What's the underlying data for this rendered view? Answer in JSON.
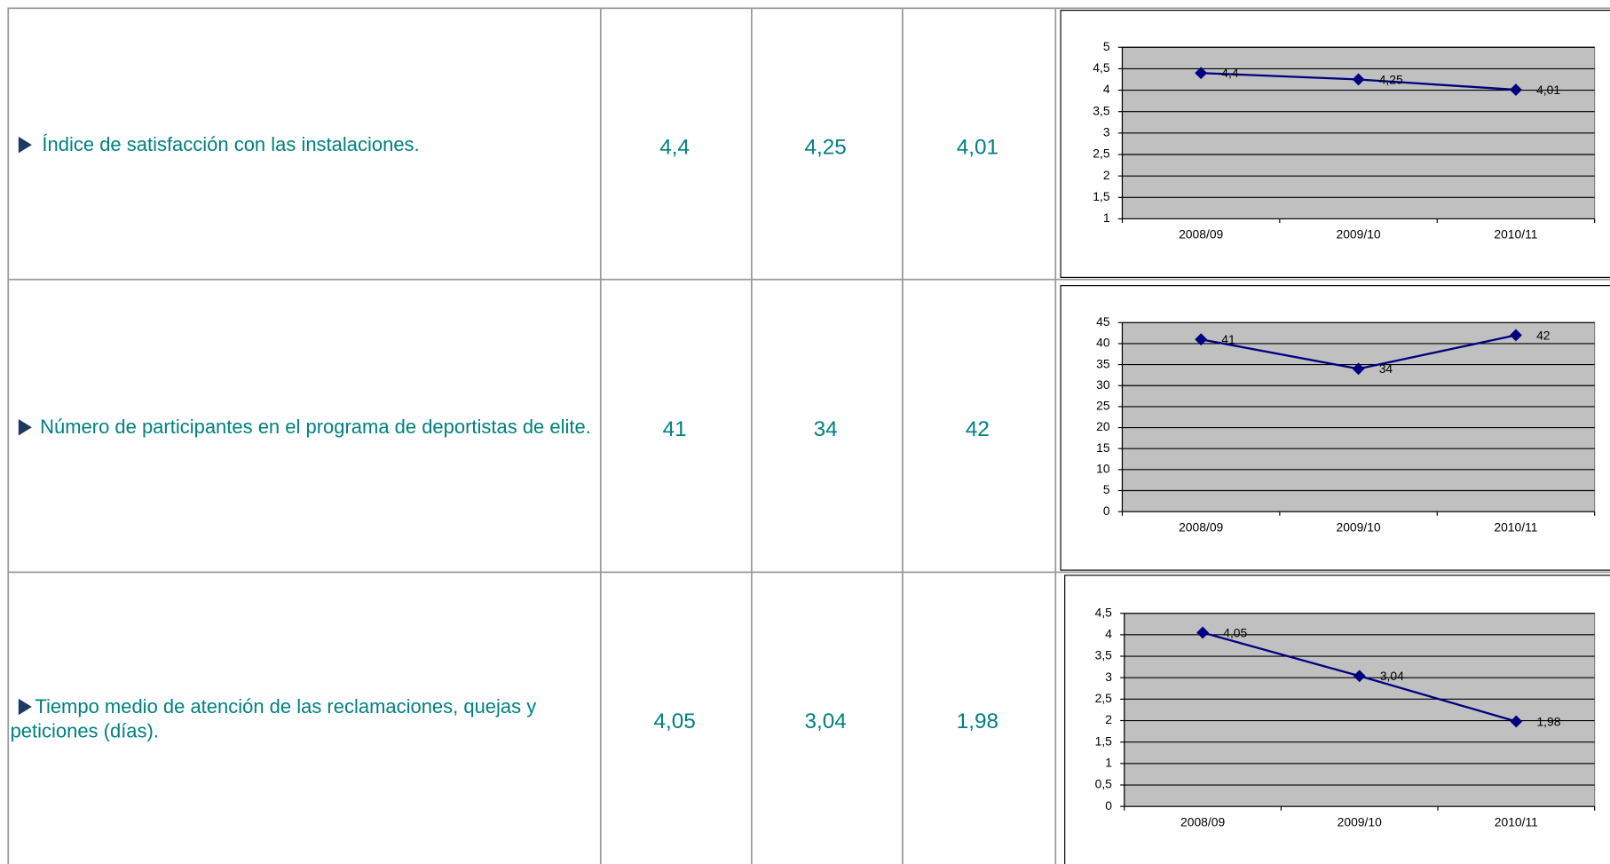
{
  "table": {
    "rows": [
      {
        "label": "Índice de satisfacción con las instalaciones.",
        "values": [
          "4,4",
          "4,25",
          "4,01"
        ]
      },
      {
        "label": "Número de participantes en el programa de deportistas de elite.",
        "values": [
          "41",
          "34",
          "42"
        ]
      },
      {
        "label": "Tiempo medio de atención de las reclamaciones, quejas y peticiones (días).",
        "values": [
          "4,05",
          "3,04",
          "1,98"
        ]
      }
    ]
  },
  "chart_data": [
    {
      "type": "line",
      "categories": [
        "2008/09",
        "2009/10",
        "2010/11"
      ],
      "values": [
        4.4,
        4.25,
        4.01
      ],
      "value_labels": [
        "4,4",
        "4,25",
        "4,01"
      ],
      "color": "#000080",
      "ylim": [
        1,
        5
      ],
      "yticks": [
        1,
        {
          "value": 1.5,
          "label": "1,5"
        },
        2,
        {
          "value": 2.5,
          "label": "2,5"
        },
        3,
        {
          "value": 3.5,
          "label": "3,5"
        },
        4,
        {
          "value": 4.5,
          "label": "4,5"
        },
        5
      ],
      "grid": true
    },
    {
      "type": "line",
      "categories": [
        "2008/09",
        "2009/10",
        "2010/11"
      ],
      "values": [
        41,
        34,
        42
      ],
      "color": "#000080",
      "ylim": [
        0,
        45
      ],
      "yticks": [
        0,
        5,
        10,
        15,
        20,
        25,
        30,
        35,
        40,
        45
      ],
      "grid": true
    },
    {
      "type": "line",
      "categories": [
        "2008/09",
        "2009/10",
        "2010/11"
      ],
      "values": [
        4.05,
        3.04,
        1.98
      ],
      "value_labels": [
        "4,05",
        "3,04",
        "1,98"
      ],
      "color": "#000080",
      "ylim": [
        0,
        4.5
      ],
      "yticks": [
        0,
        {
          "value": 0.5,
          "label": "0,5"
        },
        1,
        {
          "value": 1.5,
          "label": "1,5"
        },
        2,
        {
          "value": 2.5,
          "label": "2,5"
        },
        3,
        {
          "value": 3.5,
          "label": "3,5"
        },
        4,
        {
          "value": 4.5,
          "label": "4,5"
        }
      ],
      "grid": true
    }
  ]
}
